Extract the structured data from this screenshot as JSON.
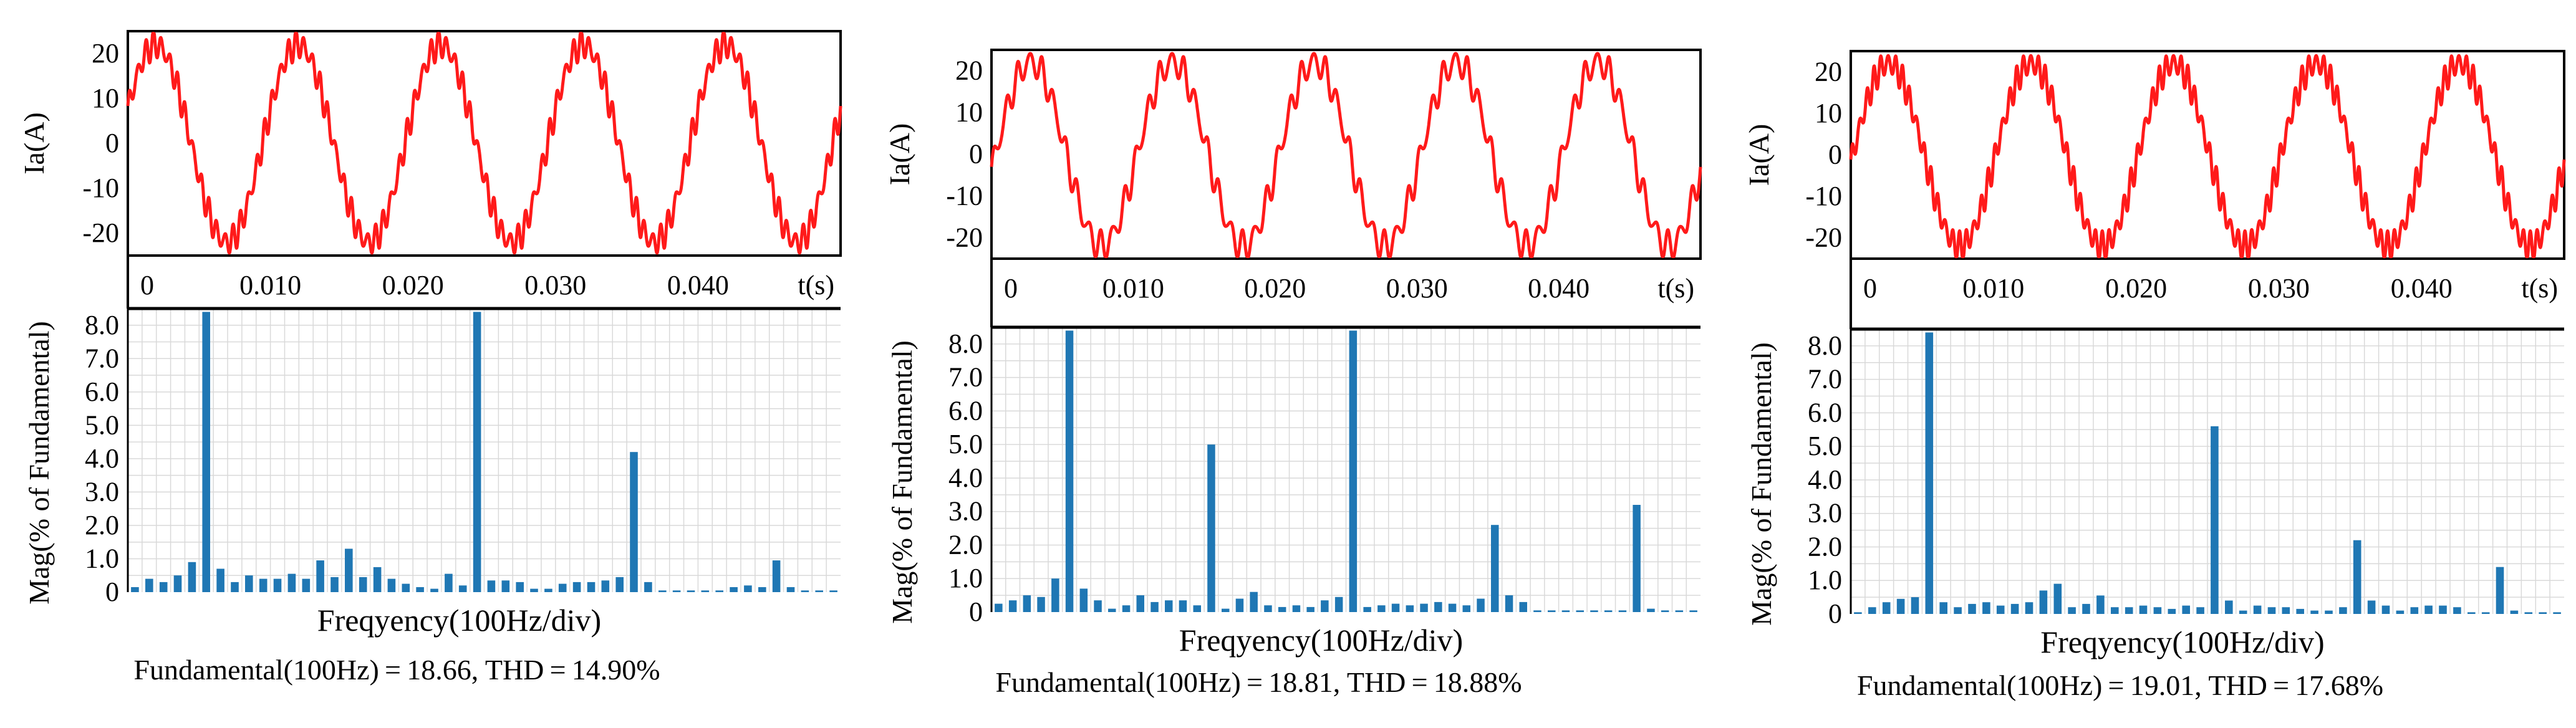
{
  "figure": {
    "panels": [
      {
        "id": "a",
        "caption": "Fundamental(100Hz) = 18.66, THD = 14.90%"
      },
      {
        "id": "b",
        "caption": "Fundamental(100Hz) = 18.81, THD = 18.88%"
      },
      {
        "id": "c",
        "caption": "Fundamental(100Hz) = 19.01, THD = 17.68%"
      }
    ]
  },
  "colors": {
    "waveform": "#ff1a1a",
    "bars": "#1f77b4",
    "grid": "#d9d9d9",
    "axis": "#000000"
  },
  "chart_data": [
    {
      "type": "line",
      "panel": "a",
      "title": "",
      "ylabel": "Ia(A)",
      "xlabel": "t(s)",
      "xlim": [
        0,
        0.05
      ],
      "ylim": [
        -25,
        25
      ],
      "xticks": [
        "0",
        "0.010",
        "0.020",
        "0.030",
        "0.040"
      ],
      "yticks": [
        "20",
        "10",
        "0",
        "-10",
        "-20"
      ],
      "series": [
        {
          "name": "Ia",
          "amplitude": 22,
          "frequency_hz": 100,
          "phase_deg": 20,
          "ripple_amplitude": 2.5,
          "ripple_cycles_per_period": 18
        }
      ]
    },
    {
      "type": "bar",
      "panel": "a",
      "ylabel": "Mag(% of Fundamental)",
      "xlabel": "Freqyency(100Hz/div)",
      "ylim": [
        0,
        8.5
      ],
      "yticks": [
        "8.0",
        "7.0",
        "6.0",
        "5.0",
        "4.0",
        "3.0",
        "2.0",
        "1.0",
        "0"
      ],
      "values": [
        0.15,
        0.4,
        0.3,
        0.5,
        0.9,
        8.4,
        0.7,
        0.3,
        0.5,
        0.4,
        0.4,
        0.55,
        0.4,
        0.95,
        0.45,
        1.3,
        0.45,
        0.75,
        0.4,
        0.25,
        0.15,
        0.1,
        0.55,
        0.2,
        8.4,
        0.35,
        0.35,
        0.3,
        0.1,
        0.1,
        0.25,
        0.3,
        0.3,
        0.35,
        0.45,
        4.2,
        0.3,
        0.05,
        0.05,
        0.05,
        0.05,
        0.05,
        0.15,
        0.2,
        0.15,
        0.95,
        0.15,
        0.05,
        0.05,
        0.05
      ]
    },
    {
      "type": "line",
      "panel": "b",
      "title": "",
      "ylabel": "Ia(A)",
      "xlabel": "t(s)",
      "xlim": [
        0,
        0.05
      ],
      "ylim": [
        -25,
        25
      ],
      "xticks": [
        "0",
        "0.010",
        "0.020",
        "0.030",
        "0.040"
      ],
      "yticks": [
        "20",
        "10",
        "0",
        "-10",
        "-20"
      ],
      "series": [
        {
          "name": "Ia",
          "amplitude": 22,
          "frequency_hz": 100,
          "phase_deg": -10,
          "ripple_amplitude": 3,
          "ripple_cycles_per_period": 12
        }
      ]
    },
    {
      "type": "bar",
      "panel": "b",
      "ylabel": "Mag(% of Fundamental)",
      "xlabel": "Freqyency(100Hz/div)",
      "ylim": [
        0,
        8.5
      ],
      "yticks": [
        "8.0",
        "7.0",
        "6.0",
        "5.0",
        "4.0",
        "3.0",
        "2.0",
        "1.0",
        "0"
      ],
      "values": [
        0.25,
        0.35,
        0.5,
        0.45,
        1.0,
        8.4,
        0.7,
        0.35,
        0.1,
        0.2,
        0.5,
        0.3,
        0.35,
        0.35,
        0.2,
        5.0,
        0.1,
        0.4,
        0.6,
        0.2,
        0.15,
        0.2,
        0.15,
        0.35,
        0.45,
        8.4,
        0.15,
        0.2,
        0.25,
        0.2,
        0.25,
        0.3,
        0.25,
        0.2,
        0.4,
        2.6,
        0.5,
        0.3,
        0.05,
        0.05,
        0.05,
        0.05,
        0.05,
        0.05,
        0.05,
        3.2,
        0.1,
        0.05,
        0.05,
        0.05
      ]
    },
    {
      "type": "line",
      "panel": "c",
      "title": "",
      "ylabel": "Ia(A)",
      "xlabel": "t(s)",
      "xlim": [
        0,
        0.05
      ],
      "ylim": [
        -25,
        25
      ],
      "xticks": [
        "0",
        "0.010",
        "0.020",
        "0.030",
        "0.040"
      ],
      "yticks": [
        "20",
        "10",
        "0",
        "-10",
        "-20"
      ],
      "series": [
        {
          "name": "Ia",
          "amplitude": 22,
          "frequency_hz": 100,
          "phase_deg": -5,
          "ripple_amplitude": 2.8,
          "ripple_cycles_per_period": 20
        }
      ]
    },
    {
      "type": "bar",
      "panel": "c",
      "ylabel": "Mag(% of Fundamental)",
      "xlabel": "Freqyency(100Hz/div)",
      "ylim": [
        0,
        8.5
      ],
      "yticks": [
        "8.0",
        "7.0",
        "6.0",
        "5.0",
        "4.0",
        "3.0",
        "2.0",
        "1.0",
        "0"
      ],
      "values": [
        0.05,
        0.2,
        0.35,
        0.45,
        0.5,
        8.4,
        0.35,
        0.2,
        0.3,
        0.35,
        0.25,
        0.3,
        0.35,
        0.7,
        0.9,
        0.2,
        0.3,
        0.55,
        0.2,
        0.2,
        0.25,
        0.2,
        0.15,
        0.25,
        0.2,
        5.6,
        0.4,
        0.1,
        0.25,
        0.2,
        0.2,
        0.15,
        0.1,
        0.1,
        0.2,
        2.2,
        0.4,
        0.25,
        0.1,
        0.2,
        0.25,
        0.25,
        0.2,
        0.05,
        0.05,
        1.4,
        0.1,
        0.05,
        0.05,
        0.05
      ]
    }
  ]
}
